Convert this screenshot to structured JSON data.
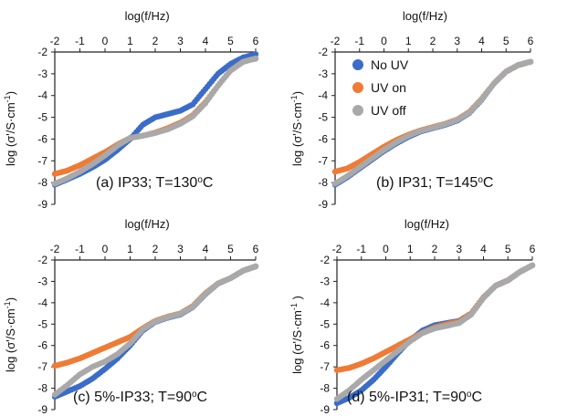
{
  "colors": {
    "No UV": "#3b6cc9",
    "UV on": "#ef7b35",
    "UV off": "#a9a9a9",
    "axis": "#222222"
  },
  "legend": {
    "placement": "top-right panel, upper-left inside",
    "entries": [
      "No UV",
      "UV on",
      "UV off"
    ]
  },
  "chart_data": [
    {
      "type": "scatter",
      "panel": "(a)",
      "label_parts": [
        "(a)  IP33; T=130",
        "o",
        "C"
      ],
      "xlabel": "log(f/Hz)",
      "ylabel_parts": [
        "log (σ'/S·cm",
        "-1",
        ")"
      ],
      "xlim": [
        -2,
        6
      ],
      "ylim": [
        -9,
        -2
      ],
      "xticks": [
        -2,
        -1,
        0,
        1,
        2,
        3,
        4,
        5,
        6
      ],
      "yticks": [
        -2,
        -3,
        -4,
        -5,
        -6,
        -7,
        -8,
        -9
      ],
      "grid": false,
      "series": [
        {
          "name": "No UV",
          "x": [
            -2,
            -1.5,
            -1,
            -0.5,
            0,
            0.5,
            1,
            1.5,
            2,
            2.5,
            3,
            3.5,
            4,
            4.5,
            5,
            5.5,
            6
          ],
          "y": [
            -8.1,
            -7.85,
            -7.6,
            -7.3,
            -6.95,
            -6.5,
            -6.0,
            -5.35,
            -5.0,
            -4.85,
            -4.7,
            -4.4,
            -3.7,
            -3.0,
            -2.55,
            -2.25,
            -2.1
          ]
        },
        {
          "name": "UV on",
          "x": [
            -2,
            -1.5,
            -1,
            -0.5,
            0,
            0.5,
            1,
            1.5,
            2,
            2.5,
            3,
            3.5,
            4,
            4.5,
            5,
            5.5,
            6
          ],
          "y": [
            -7.6,
            -7.45,
            -7.2,
            -6.9,
            -6.6,
            -6.25,
            -5.95,
            -5.85,
            -5.7,
            -5.5,
            -5.25,
            -4.9,
            -4.3,
            -3.55,
            -2.85,
            -2.45,
            -2.3
          ]
        },
        {
          "name": "UV off",
          "x": [
            -2,
            -1.5,
            -1,
            -0.5,
            0,
            0.5,
            1,
            1.5,
            2,
            2.5,
            3,
            3.5,
            4,
            4.5,
            5,
            5.5,
            6
          ],
          "y": [
            -8.05,
            -7.8,
            -7.5,
            -7.15,
            -6.75,
            -6.3,
            -5.95,
            -5.85,
            -5.72,
            -5.55,
            -5.3,
            -4.95,
            -4.35,
            -3.55,
            -2.85,
            -2.45,
            -2.3
          ]
        }
      ]
    },
    {
      "type": "scatter",
      "panel": "(b)",
      "label_parts": [
        "(b) IP31; T=145",
        "o",
        "C"
      ],
      "xlabel": "log(f/Hz)",
      "ylabel_parts": [
        "log (σ'/S·cm",
        "-1",
        ")"
      ],
      "xlim": [
        -2,
        6
      ],
      "ylim": [
        -9,
        -2
      ],
      "xticks": [
        -2,
        -1,
        0,
        1,
        2,
        3,
        4,
        5,
        6
      ],
      "yticks": [
        -2,
        -3,
        -4,
        -5,
        -6,
        -7,
        -8,
        -9
      ],
      "grid": false,
      "series": [
        {
          "name": "No UV",
          "x": [
            -2,
            -1.5,
            -1,
            -0.5,
            0,
            0.5,
            1,
            1.5,
            2,
            2.5,
            3,
            3.5,
            4,
            4.5,
            5,
            5.5,
            6
          ],
          "y": [
            -8.1,
            -7.75,
            -7.35,
            -6.95,
            -6.55,
            -6.2,
            -5.9,
            -5.65,
            -5.5,
            -5.35,
            -5.15,
            -4.8,
            -4.2,
            -3.45,
            -2.9,
            -2.6,
            -2.45
          ]
        },
        {
          "name": "UV on",
          "x": [
            -2,
            -1.5,
            -1,
            -0.5,
            0,
            0.5,
            1,
            1.5,
            2,
            2.5,
            3,
            3.5,
            4,
            4.5,
            5,
            5.5,
            6
          ],
          "y": [
            -7.5,
            -7.35,
            -7.05,
            -6.7,
            -6.35,
            -6.05,
            -5.8,
            -5.6,
            -5.45,
            -5.3,
            -5.1,
            -4.75,
            -4.15,
            -3.45,
            -2.9,
            -2.6,
            -2.45
          ]
        },
        {
          "name": "UV off",
          "x": [
            -2,
            -1.5,
            -1,
            -0.5,
            0,
            0.5,
            1,
            1.5,
            2,
            2.5,
            3,
            3.5,
            4,
            4.5,
            5,
            5.5,
            6
          ],
          "y": [
            -8.05,
            -7.7,
            -7.3,
            -6.9,
            -6.5,
            -6.15,
            -5.85,
            -5.62,
            -5.48,
            -5.32,
            -5.12,
            -4.78,
            -4.18,
            -3.45,
            -2.9,
            -2.6,
            -2.45
          ]
        }
      ]
    },
    {
      "type": "scatter",
      "panel": "(c)",
      "label_parts": [
        "(c) 5%-IP33; T=90",
        "o",
        "C"
      ],
      "xlabel": "log(f/Hz)",
      "ylabel_parts": [
        "log (σ'/S·cm",
        "-1",
        ")"
      ],
      "xlim": [
        -2,
        6
      ],
      "ylim": [
        -9,
        -2
      ],
      "xticks": [
        -2,
        -1,
        0,
        1,
        2,
        3,
        4,
        5,
        6
      ],
      "yticks": [
        -2,
        -3,
        -4,
        -5,
        -6,
        -7,
        -8,
        -9
      ],
      "grid": false,
      "series": [
        {
          "name": "No UV",
          "x": [
            -2,
            -1.5,
            -1,
            -0.5,
            0,
            0.5,
            1,
            1.5,
            2,
            2.5,
            3,
            3.5,
            4,
            4.5,
            5,
            5.5,
            6
          ],
          "y": [
            -8.4,
            -8.15,
            -7.9,
            -7.55,
            -7.1,
            -6.6,
            -6.0,
            -5.3,
            -4.9,
            -4.7,
            -4.55,
            -4.2,
            -3.6,
            -3.1,
            -2.85,
            -2.5,
            -2.3
          ]
        },
        {
          "name": "UV on",
          "x": [
            -2,
            -1.5,
            -1,
            -0.5,
            0,
            0.5,
            1,
            1.5,
            2,
            2.5,
            3,
            3.5,
            4,
            4.5,
            5,
            5.5,
            6
          ],
          "y": [
            -6.95,
            -6.8,
            -6.6,
            -6.35,
            -6.1,
            -5.85,
            -5.6,
            -5.2,
            -4.85,
            -4.65,
            -4.5,
            -4.15,
            -3.55,
            -3.1,
            -2.85,
            -2.5,
            -2.3
          ]
        },
        {
          "name": "UV off",
          "x": [
            -2,
            -1.5,
            -1,
            -0.5,
            0,
            0.5,
            1,
            1.5,
            2,
            2.5,
            3,
            3.5,
            4,
            4.5,
            5,
            5.5,
            6
          ],
          "y": [
            -8.3,
            -7.85,
            -7.35,
            -7.0,
            -6.75,
            -6.4,
            -5.9,
            -5.25,
            -4.88,
            -4.68,
            -4.52,
            -4.18,
            -3.58,
            -3.1,
            -2.85,
            -2.5,
            -2.3
          ]
        }
      ]
    },
    {
      "type": "scatter",
      "panel": "(d)",
      "label_parts": [
        "(d) 5%-IP31; T=90",
        "o",
        "C"
      ],
      "xlabel": "log(f/Hz)",
      "ylabel_parts": [
        "log (σ'/S·cm",
        "-1",
        " )"
      ],
      "xlim": [
        -2,
        6
      ],
      "ylim": [
        -9,
        -2
      ],
      "xticks": [
        -2,
        -1,
        0,
        1,
        2,
        3,
        4,
        5,
        6
      ],
      "yticks": [
        -2,
        -3,
        -4,
        -5,
        -6,
        -7,
        -8,
        -9
      ],
      "grid": false,
      "series": [
        {
          "name": "No UV",
          "x": [
            -2,
            -1.5,
            -1,
            -0.5,
            0,
            0.5,
            1,
            1.5,
            2,
            2.5,
            3,
            3.5,
            4,
            4.5,
            5,
            5.5,
            6
          ],
          "y": [
            -8.7,
            -8.45,
            -8.1,
            -7.6,
            -7.0,
            -6.35,
            -5.75,
            -5.3,
            -5.05,
            -4.95,
            -4.85,
            -4.5,
            -3.75,
            -3.2,
            -2.95,
            -2.55,
            -2.25
          ]
        },
        {
          "name": "UV on",
          "x": [
            -2,
            -1.5,
            -1,
            -0.5,
            0,
            0.5,
            1,
            1.5,
            2,
            2.5,
            3,
            3.5,
            4,
            4.5,
            5,
            5.5,
            6
          ],
          "y": [
            -7.15,
            -7.05,
            -6.85,
            -6.6,
            -6.3,
            -6.0,
            -5.7,
            -5.4,
            -5.15,
            -5.0,
            -4.88,
            -4.5,
            -3.75,
            -3.2,
            -2.95,
            -2.55,
            -2.25
          ]
        },
        {
          "name": "UV off",
          "x": [
            -2,
            -1.5,
            -1,
            -0.5,
            0,
            0.5,
            1,
            1.5,
            2,
            2.5,
            3,
            3.5,
            4,
            4.5,
            5,
            5.5,
            6
          ],
          "y": [
            -8.5,
            -8.1,
            -7.6,
            -7.15,
            -6.7,
            -6.25,
            -5.8,
            -5.42,
            -5.2,
            -5.08,
            -4.95,
            -4.55,
            -3.78,
            -3.2,
            -2.95,
            -2.55,
            -2.25
          ]
        }
      ]
    }
  ]
}
